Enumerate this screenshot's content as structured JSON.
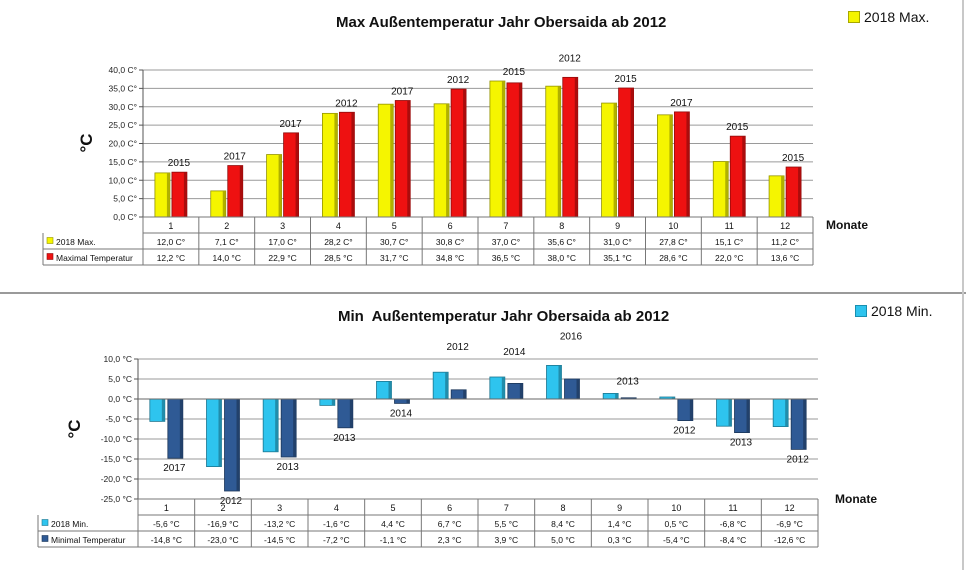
{
  "chart_data": [
    {
      "type": "bar",
      "title": "Max Außentemperatur Jahr Obersaida ab 2012",
      "ylabel": "°C",
      "xlabel": "Monate",
      "ylim": [
        0,
        40
      ],
      "yticks": [
        "0,0 C°",
        "5,0 C°",
        "10,0 C°",
        "15,0 C°",
        "20,0 C°",
        "25,0 C°",
        "30,0 C°",
        "35,0 C°",
        "40,0 C°"
      ],
      "categories": [
        "1",
        "2",
        "3",
        "4",
        "5",
        "6",
        "7",
        "8",
        "9",
        "10",
        "11",
        "12"
      ],
      "legend_label": "2018 Max.",
      "grid": true,
      "series": [
        {
          "name": "2018 Max.",
          "color": "#f5f500",
          "values": [
            12.0,
            7.1,
            17.0,
            28.2,
            30.7,
            30.8,
            37.0,
            35.6,
            31.0,
            27.8,
            15.1,
            11.2
          ],
          "table_values": [
            "12,0 C°",
            "7,1 C°",
            "17,0 C°",
            "28,2 C°",
            "30,7 C°",
            "30,8 C°",
            "37,0 C°",
            "35,6 C°",
            "31,0 C°",
            "27,8 C°",
            "15,1 C°",
            "11,2 C°"
          ]
        },
        {
          "name": "Maximal Temperatur",
          "color": "#ee1111",
          "values": [
            12.2,
            14.0,
            22.9,
            28.5,
            31.7,
            34.8,
            36.5,
            38.0,
            35.1,
            28.6,
            22.0,
            13.6
          ],
          "table_values": [
            "12,2 °C",
            "14,0 °C",
            "22,9 °C",
            "28,5 °C",
            "31,7 °C",
            "34,8 °C",
            "36,5 °C",
            "38,0 °C",
            "35,1 °C",
            "28,6 °C",
            "22,0 °C",
            "13,6 °C"
          ]
        }
      ],
      "year_labels": [
        "2015",
        "2017",
        "2017",
        "2012",
        "2017",
        "2012",
        "2015",
        "2012",
        "2015",
        "2017",
        "2015",
        "2015"
      ]
    },
    {
      "type": "bar",
      "title": "Min  Außentemperatur Jahr Obersaida ab 2012",
      "ylabel": "°C",
      "xlabel": "Monate",
      "ylim": [
        -25,
        10
      ],
      "yticks": [
        "-25,0 °C",
        "-20,0 °C",
        "-15,0 °C",
        "-10,0 °C",
        "-5,0 °C",
        "0,0 °C",
        "5,0 °C",
        "10,0 °C"
      ],
      "categories": [
        "1",
        "2",
        "3",
        "4",
        "5",
        "6",
        "7",
        "8",
        "9",
        "10",
        "11",
        "12"
      ],
      "legend_label": "2018 Min.",
      "grid": true,
      "series": [
        {
          "name": "2018 Min.",
          "color": "#2ec4ee",
          "values": [
            -5.6,
            -16.9,
            -13.2,
            -1.6,
            4.4,
            6.7,
            5.5,
            8.4,
            1.4,
            0.5,
            -6.8,
            -6.9
          ],
          "table_values": [
            "-5,6 °C",
            "-16,9 °C",
            "-13,2 °C",
            "-1,6 °C",
            "4,4 °C",
            "6,7 °C",
            "5,5 °C",
            "8,4 °C",
            "1,4 °C",
            "0,5 °C",
            "-6,8 °C",
            "-6,9 °C"
          ]
        },
        {
          "name": "Minimal Temperatur",
          "color": "#2f5a95",
          "values": [
            -14.8,
            -23.0,
            -14.5,
            -7.2,
            -1.1,
            2.3,
            3.9,
            5.0,
            0.3,
            -5.4,
            -8.4,
            -12.6
          ],
          "table_values": [
            "-14,8 °C",
            "-23,0 °C",
            "-14,5 °C",
            "-7,2 °C",
            "-1,1 °C",
            "2,3 °C",
            "3,9 °C",
            "5,0 °C",
            "0,3 °C",
            "-5,4 °C",
            "-8,4 °C",
            "-12,6 °C"
          ]
        }
      ],
      "year_labels": [
        "2017",
        "2012",
        "2013",
        "2013",
        "2014",
        "2012",
        "2014",
        "2016",
        "2013",
        "2012",
        "2013",
        "2012"
      ]
    }
  ]
}
